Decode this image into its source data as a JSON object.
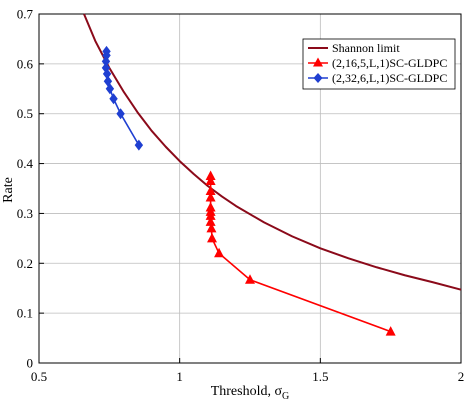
{
  "chart_data": {
    "type": "line",
    "xlabel": "Threshold, σ",
    "xlabel_subscript": "G",
    "ylabel": "Rate",
    "xlim": [
      0.5,
      2
    ],
    "ylim": [
      0,
      0.7
    ],
    "xticks": [
      0.5,
      1,
      1.5,
      2
    ],
    "xtick_labels": [
      "0.5",
      "1",
      "1.5",
      "2"
    ],
    "yticks": [
      0,
      0.1,
      0.2,
      0.3,
      0.4,
      0.5,
      0.6,
      0.7
    ],
    "ytick_labels": [
      "0",
      "0.1",
      "0.2",
      "0.3",
      "0.4",
      "0.5",
      "0.6",
      "0.7"
    ],
    "grid": true,
    "legend_position": "top-right",
    "series": [
      {
        "name": "Shannon limit",
        "color": "#8b0a1a",
        "marker": "none",
        "x": [
          0.66,
          0.7,
          0.75,
          0.8,
          0.85,
          0.9,
          0.95,
          1.0,
          1.05,
          1.1,
          1.15,
          1.2,
          1.3,
          1.4,
          1.5,
          1.6,
          1.7,
          1.8,
          1.9,
          2.0
        ],
        "y": [
          0.7,
          0.646,
          0.592,
          0.545,
          0.503,
          0.466,
          0.434,
          0.405,
          0.379,
          0.355,
          0.334,
          0.315,
          0.282,
          0.254,
          0.23,
          0.21,
          0.192,
          0.176,
          0.162,
          0.147
        ]
      },
      {
        "name": "(2,16,5,L,1)SC-GLDPC",
        "color": "#ff0000",
        "marker": "triangle",
        "x": [
          1.11,
          1.11,
          1.11,
          1.11,
          1.11,
          1.11,
          1.11,
          1.11,
          1.113,
          1.115,
          1.14,
          1.25,
          1.75
        ],
        "y": [
          0.375,
          0.365,
          0.345,
          0.332,
          0.312,
          0.303,
          0.295,
          0.283,
          0.27,
          0.25,
          0.22,
          0.167,
          0.063
        ]
      },
      {
        "name": "(2,32,6,L,1)SC-GLDPC",
        "color": "#1f3fd1",
        "marker": "diamond",
        "x": [
          0.74,
          0.74,
          0.738,
          0.738,
          0.742,
          0.745,
          0.752,
          0.765,
          0.79,
          0.855
        ],
        "y": [
          0.625,
          0.617,
          0.605,
          0.592,
          0.58,
          0.565,
          0.55,
          0.53,
          0.5,
          0.437
        ]
      }
    ]
  }
}
